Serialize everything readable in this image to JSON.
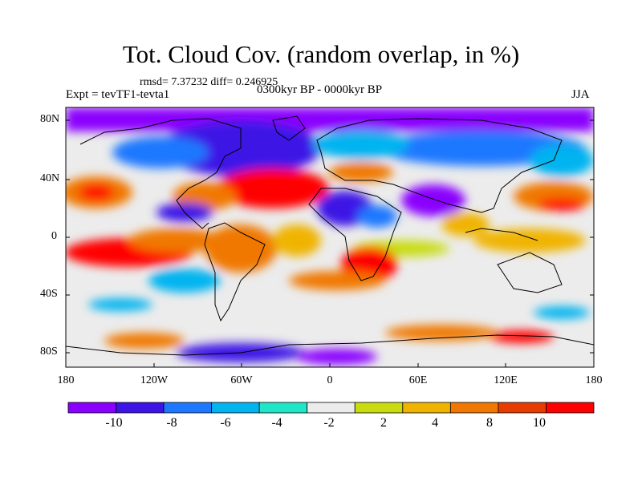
{
  "title": "Tot. Cloud Cov. (random overlap, in %)",
  "stats": "rmsd= 7.37232 diff= 0.246925",
  "experiment": "Expt = tevTF1-tevta1",
  "period": "0300kyr BP - 0000kyr BP",
  "season": "JJA",
  "lat_labels": [
    "80N",
    "40N",
    "0",
    "40S",
    "80S"
  ],
  "lon_labels": [
    "180",
    "120W",
    "60W",
    "0",
    "60E",
    "120E",
    "180"
  ],
  "colorbar": {
    "labels": [
      "-10",
      "-8",
      "-6",
      "-4",
      "-2",
      "2",
      "4",
      "8",
      "10"
    ],
    "colors": [
      "#8a00ff",
      "#3c14e6",
      "#1e78ff",
      "#00b4f0",
      "#20e6c8",
      "#ececec",
      "#c8dc10",
      "#f0b400",
      "#f07800",
      "#e63c00",
      "#ff0000"
    ]
  }
}
